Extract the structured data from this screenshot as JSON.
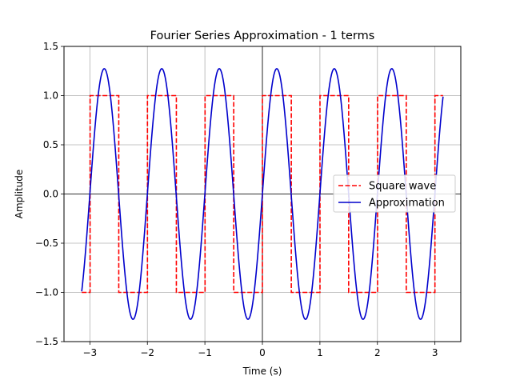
{
  "chart_data": {
    "type": "line",
    "title": "Fourier Series Approximation - 1 terms",
    "xlabel": "Time (s)",
    "ylabel": "Amplitude",
    "xlim": [
      -3.45,
      3.45
    ],
    "ylim": [
      -1.5,
      1.5
    ],
    "xticks": [
      -3,
      -2,
      -1,
      0,
      1,
      2,
      3
    ],
    "yticks": [
      -1.5,
      -1.0,
      -0.5,
      0.0,
      0.5,
      1.0,
      1.5
    ],
    "xtick_labels": [
      "−3",
      "−2",
      "−1",
      "0",
      "1",
      "2",
      "3"
    ],
    "ytick_labels": [
      "−1.5",
      "−1.0",
      "−0.5",
      "0.0",
      "0.5",
      "1.0",
      "1.5"
    ],
    "grid": true,
    "zero_lines": true,
    "legend_position": "center-right",
    "domain": [
      -3.14159,
      3.14159
    ],
    "series": [
      {
        "name": "Square wave",
        "color": "#ff0000",
        "style": "dashed",
        "function": "sign(sin(2*pi*t))",
        "frequency": 1,
        "amplitude": 1
      },
      {
        "name": "Approximation",
        "color": "#0000cc",
        "style": "solid",
        "function": "(4/pi)*sin(2*pi*t)",
        "frequency": 1,
        "amplitude": 1.2732
      }
    ]
  }
}
